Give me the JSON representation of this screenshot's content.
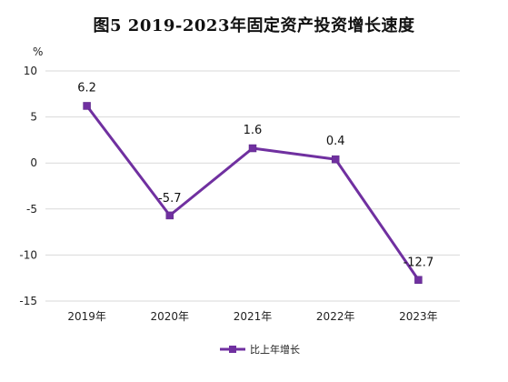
{
  "chart_data": {
    "type": "line",
    "title": "图5   2019-2023年固定资产投资增长速度",
    "ylabel": "%",
    "xlabel": "",
    "categories": [
      "2019年",
      "2020年",
      "2021年",
      "2022年",
      "2023年"
    ],
    "series": [
      {
        "name": "比上年增长",
        "values": [
          6.2,
          -5.7,
          1.6,
          0.4,
          -12.7
        ],
        "labels": [
          "6.2",
          "-5.7",
          "1.6",
          "0.4",
          "-12.7"
        ],
        "color": "#7030a0"
      }
    ],
    "ylim": [
      -15,
      10
    ],
    "yticks": [
      10,
      5,
      0,
      -5,
      -10,
      -15
    ],
    "ytick_labels": [
      "10",
      "5",
      "0",
      "-5",
      "-10",
      "-15"
    ],
    "grid": true,
    "legend_position": "bottom",
    "marker": "square"
  }
}
